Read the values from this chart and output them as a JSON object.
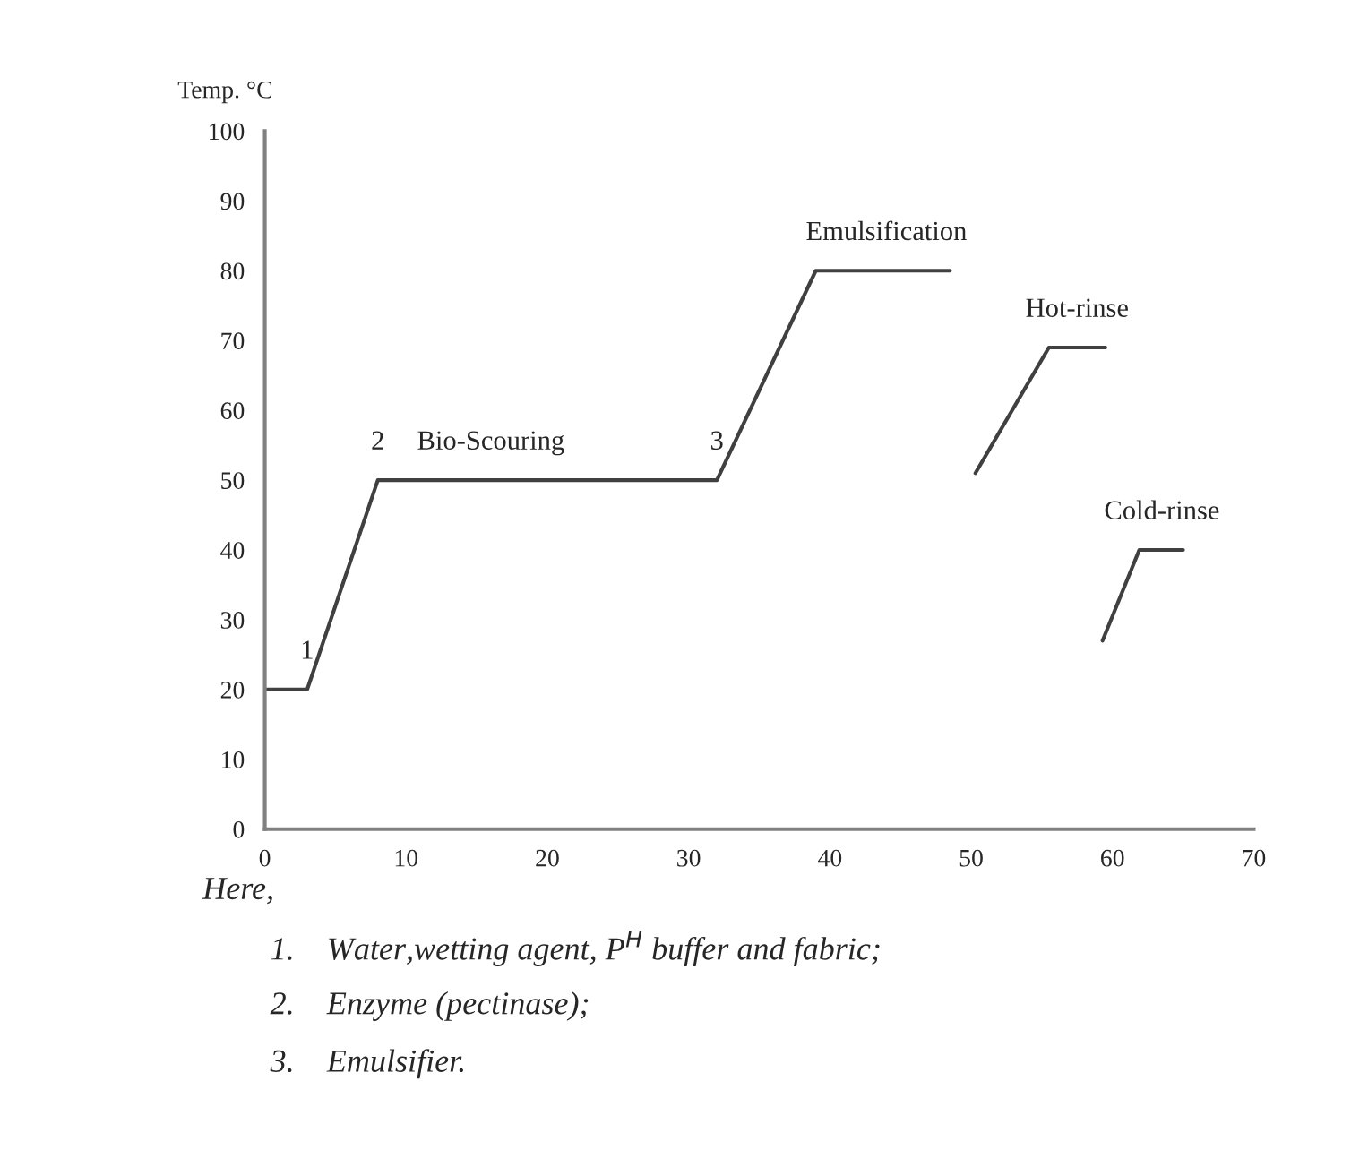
{
  "chart_data": {
    "type": "line",
    "ylabel": "Temp. °C",
    "xlim": [
      0,
      70
    ],
    "xticks": [
      0,
      10,
      20,
      30,
      40,
      50,
      60,
      70
    ],
    "ylim": [
      0,
      100
    ],
    "yticks": [
      0,
      10,
      20,
      30,
      40,
      50,
      60,
      70,
      80,
      90,
      100
    ],
    "grid": false,
    "marker": "none",
    "line_style": "solid",
    "series": [
      {
        "color": "#404040",
        "x": [
          0,
          3,
          8,
          32,
          39,
          48.5
        ],
        "values": [
          20,
          20,
          50,
          50,
          80,
          80
        ]
      },
      {
        "color": "#404040",
        "x": [
          50.3,
          55.5,
          59.5
        ],
        "values": [
          51,
          69,
          69
        ]
      },
      {
        "color": "#404040",
        "x": [
          59.3,
          61.9,
          65
        ],
        "values": [
          27,
          40,
          40
        ]
      }
    ],
    "annotations": [
      {
        "text": "1",
        "x": 3,
        "y": 20
      },
      {
        "text": "2",
        "x": 8,
        "y": 50
      },
      {
        "text": "Bio-Scouring",
        "x": 16,
        "y": 50
      },
      {
        "text": "3",
        "x": 32,
        "y": 50
      },
      {
        "text": "Emulsification",
        "x": 44,
        "y": 80
      },
      {
        "text": "Hot-rinse",
        "x": 57.5,
        "y": 69
      },
      {
        "text": "Cold-rinse",
        "x": 63.5,
        "y": 40
      },
      "Here,",
      "1.    Water,wetting agent, P$^{H}$ buffer and fabric;",
      "2.    Enzyme (pectinase);",
      "3.    Emulsifier."
    ]
  }
}
